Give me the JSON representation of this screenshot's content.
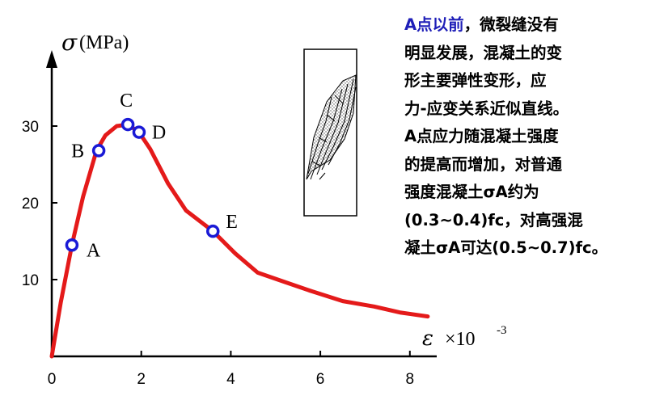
{
  "chart_data": {
    "type": "line",
    "ylabel_symbol": "σ",
    "ylabel_unit": "(MPa)",
    "xlabel_symbol": "ε",
    "xlabel_unit": "×10",
    "xlabel_exp": "-3",
    "xlim": [
      0,
      8.6
    ],
    "ylim": [
      0,
      38
    ],
    "xticks": [
      0,
      2,
      4,
      6,
      8
    ],
    "yticks": [
      10,
      20,
      30
    ],
    "series": [
      {
        "color": "#e41a1a",
        "x": [
          0,
          0.2,
          0.45,
          0.7,
          1.0,
          1.2,
          1.45,
          1.7,
          1.95,
          2.2,
          2.6,
          3.0,
          3.6,
          4.1,
          4.6,
          5.2,
          5.8,
          6.5,
          7.2,
          7.8,
          8.4
        ],
        "y": [
          0,
          7,
          14.5,
          20.8,
          26.8,
          28.8,
          30.0,
          30.2,
          29.2,
          27.0,
          22.5,
          19.0,
          16.3,
          13.4,
          10.9,
          9.7,
          8.5,
          7.2,
          6.5,
          5.7,
          5.2
        ]
      }
    ],
    "points": [
      {
        "label": "A",
        "x": 0.45,
        "y": 14.5
      },
      {
        "label": "B",
        "x": 1.05,
        "y": 26.8
      },
      {
        "label": "C",
        "x": 1.7,
        "y": 30.2
      },
      {
        "label": "D",
        "x": 1.95,
        "y": 29.2
      },
      {
        "label": "E",
        "x": 3.6,
        "y": 16.3
      }
    ]
  },
  "description": {
    "lead": "A点以前",
    "lines": [
      "，微裂缝没有",
      "明显发展，混凝土的变",
      "形主要弹性变形，应",
      "力-应变关系近似直线。",
      "A点应力随混凝土强度",
      "的提高而增加，对普通",
      "强度混凝土σA约为",
      "(0.3~0.4)fc，对高强混",
      "凝土σA可达(0.5~0.7)fc。"
    ]
  }
}
